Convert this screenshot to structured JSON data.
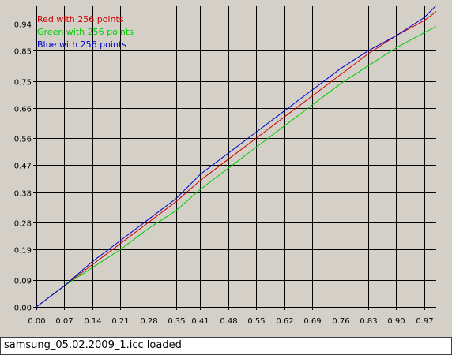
{
  "chart_data": {
    "type": "line",
    "title": "",
    "xlabel": "",
    "ylabel": "",
    "xlim": [
      0,
      1
    ],
    "ylim": [
      0,
      1
    ],
    "grid": true,
    "legend_placement": "top-left",
    "x_ticks": [
      "0.00",
      "0.07",
      "0.14",
      "0.21",
      "0.28",
      "0.35",
      "0.41",
      "0.48",
      "0.55",
      "0.62",
      "0.69",
      "0.76",
      "0.83",
      "0.90",
      "0.97"
    ],
    "y_ticks": [
      "0.00",
      "0.09",
      "0.19",
      "0.28",
      "0.38",
      "0.47",
      "0.56",
      "0.66",
      "0.75",
      "0.85",
      "0.94"
    ],
    "series": [
      {
        "name": "Red with 256 points",
        "color": "#cc0000",
        "x": [
          0.0,
          0.07,
          0.14,
          0.21,
          0.28,
          0.35,
          0.41,
          0.48,
          0.55,
          0.62,
          0.69,
          0.76,
          0.83,
          0.9,
          0.97,
          1.0
        ],
        "y": [
          0.0,
          0.07,
          0.14,
          0.21,
          0.28,
          0.35,
          0.42,
          0.49,
          0.56,
          0.63,
          0.7,
          0.77,
          0.84,
          0.9,
          0.95,
          0.98
        ]
      },
      {
        "name": "Green with 256 points",
        "color": "#00cc00",
        "x": [
          0.0,
          0.07,
          0.14,
          0.21,
          0.28,
          0.35,
          0.41,
          0.48,
          0.55,
          0.62,
          0.69,
          0.76,
          0.83,
          0.9,
          0.97,
          1.0
        ],
        "y": [
          0.0,
          0.07,
          0.13,
          0.19,
          0.26,
          0.32,
          0.39,
          0.46,
          0.53,
          0.6,
          0.67,
          0.74,
          0.8,
          0.86,
          0.91,
          0.93
        ]
      },
      {
        "name": "Blue with 256 points",
        "color": "#0000cc",
        "x": [
          0.0,
          0.07,
          0.14,
          0.21,
          0.28,
          0.35,
          0.41,
          0.48,
          0.55,
          0.62,
          0.69,
          0.76,
          0.83,
          0.9,
          0.97,
          1.0
        ],
        "y": [
          0.0,
          0.07,
          0.15,
          0.22,
          0.29,
          0.36,
          0.44,
          0.51,
          0.58,
          0.65,
          0.72,
          0.79,
          0.85,
          0.9,
          0.96,
          1.0
        ]
      }
    ]
  },
  "status": {
    "text": "samsung_05.02.2009_1.icc loaded"
  }
}
